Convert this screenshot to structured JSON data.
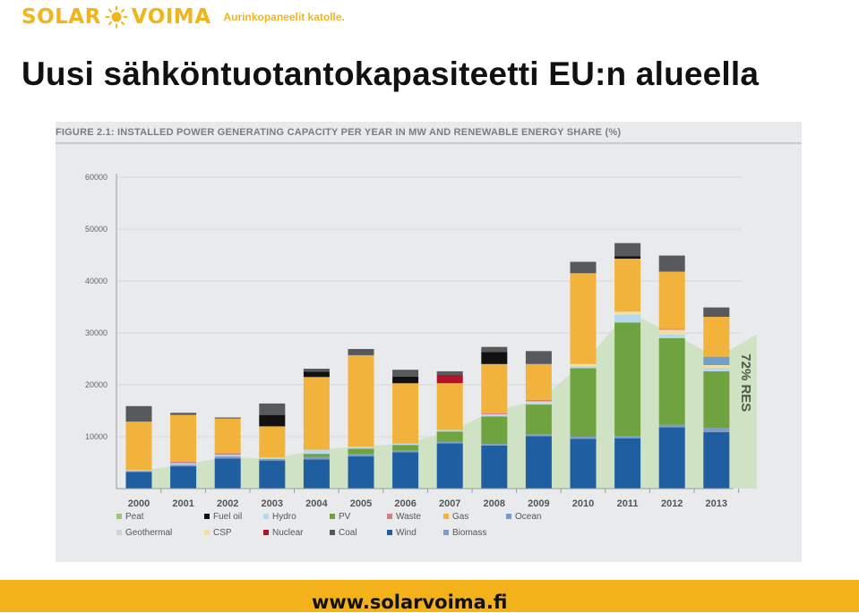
{
  "logo": {
    "word_left": "SOLAR",
    "word_right": "VOIMA",
    "tagline": "Aurinkopaneelit katolle."
  },
  "title": "Uusi sähköntuotantokapasiteetti EU:n alueella",
  "footer": {
    "url": "www.solarvoima.fi"
  },
  "chart_data": {
    "type": "bar",
    "stacked": true,
    "title": "FIGURE 2.1: INSTALLED POWER GENERATING CAPACITY PER YEAR IN MW AND RENEWABLE ENERGY SHARE (%)",
    "xlabel": "",
    "ylabel": "",
    "ylim": [
      0,
      60000
    ],
    "yticks": [
      10000,
      20000,
      30000,
      40000,
      50000,
      60000
    ],
    "grid": true,
    "legend_position": "bottom",
    "categories": [
      "2000",
      "2001",
      "2002",
      "2003",
      "2004",
      "2005",
      "2006",
      "2007",
      "2008",
      "2009",
      "2010",
      "2011",
      "2012",
      "2013"
    ],
    "series": [
      {
        "name": "Wind",
        "color": "#1f5fa1",
        "values": [
          3200,
          4300,
          5800,
          5400,
          5600,
          6200,
          7000,
          8700,
          8300,
          10100,
          9600,
          9700,
          11800,
          10900
        ]
      },
      {
        "name": "Biomass",
        "color": "#7f9cc9",
        "values": [
          200,
          300,
          400,
          300,
          500,
          500,
          400,
          300,
          300,
          400,
          400,
          400,
          500,
          800
        ]
      },
      {
        "name": "PV",
        "color": "#6ea33f",
        "values": [
          0,
          0,
          0,
          0,
          600,
          1000,
          1000,
          2000,
          5300,
          5700,
          13200,
          21900,
          16700,
          10900
        ]
      },
      {
        "name": "Geothermal",
        "color": "#cfd2d6",
        "values": [
          0,
          0,
          0,
          0,
          0,
          0,
          0,
          0,
          0,
          0,
          0,
          0,
          0,
          0
        ]
      },
      {
        "name": "Hydro",
        "color": "#b8d9ec",
        "values": [
          200,
          300,
          300,
          300,
          800,
          400,
          300,
          300,
          300,
          400,
          400,
          1500,
          700,
          700
        ]
      },
      {
        "name": "CSP",
        "color": "#f3dfa0",
        "values": [
          0,
          0,
          0,
          0,
          0,
          0,
          0,
          0,
          100,
          200,
          400,
          600,
          900,
          500
        ]
      },
      {
        "name": "Ocean",
        "color": "#6fa0cd",
        "values": [
          0,
          0,
          0,
          0,
          0,
          0,
          0,
          0,
          0,
          0,
          0,
          0,
          0,
          1600
        ]
      },
      {
        "name": "Waste",
        "color": "#d97b8a",
        "values": [
          0,
          300,
          300,
          0,
          0,
          0,
          0,
          0,
          200,
          300,
          0,
          0,
          200,
          0
        ]
      },
      {
        "name": "Gas",
        "color": "#f2b33d",
        "values": [
          9300,
          9000,
          6700,
          6000,
          14000,
          17600,
          11600,
          9000,
          9500,
          6900,
          17500,
          10200,
          11000,
          7700
        ]
      },
      {
        "name": "Fuel oil",
        "color": "#111111",
        "values": [
          0,
          0,
          0,
          2200,
          1000,
          0,
          1300,
          0,
          2300,
          0,
          0,
          500,
          0,
          0
        ]
      },
      {
        "name": "Nuclear",
        "color": "#b0132a",
        "values": [
          0,
          0,
          0,
          0,
          0,
          0,
          0,
          1600,
          0,
          0,
          0,
          0,
          0,
          0
        ]
      },
      {
        "name": "Coal",
        "color": "#58595b",
        "values": [
          3000,
          400,
          200,
          2200,
          600,
          1200,
          1300,
          700,
          1000,
          2500,
          2200,
          2500,
          3100,
          1800
        ]
      },
      {
        "name": "Peat",
        "color": "#9cc77b",
        "values": [
          0,
          0,
          0,
          0,
          0,
          0,
          0,
          0,
          0,
          0,
          0,
          0,
          0,
          0
        ]
      }
    ],
    "res_area": {
      "x": [
        "2000",
        "2001",
        "2002",
        "2003",
        "2004",
        "2005",
        "2006",
        "2007",
        "2008",
        "2009",
        "2010",
        "2011",
        "2012",
        "2013"
      ],
      "values": [
        3400,
        4600,
        6100,
        5700,
        7500,
        8100,
        8700,
        11000,
        15000,
        17000,
        24000,
        34000,
        30000,
        25300
      ],
      "end_value": 29700,
      "label": "72% RES",
      "color": "#cfe2c3"
    },
    "legend": [
      "Peat",
      "Fuel oil",
      "Hydro",
      "PV",
      "Waste",
      "Gas",
      "Ocean",
      "Geothermal",
      "CSP",
      "Nuclear",
      "Coal",
      "Wind",
      "Biomass"
    ]
  }
}
